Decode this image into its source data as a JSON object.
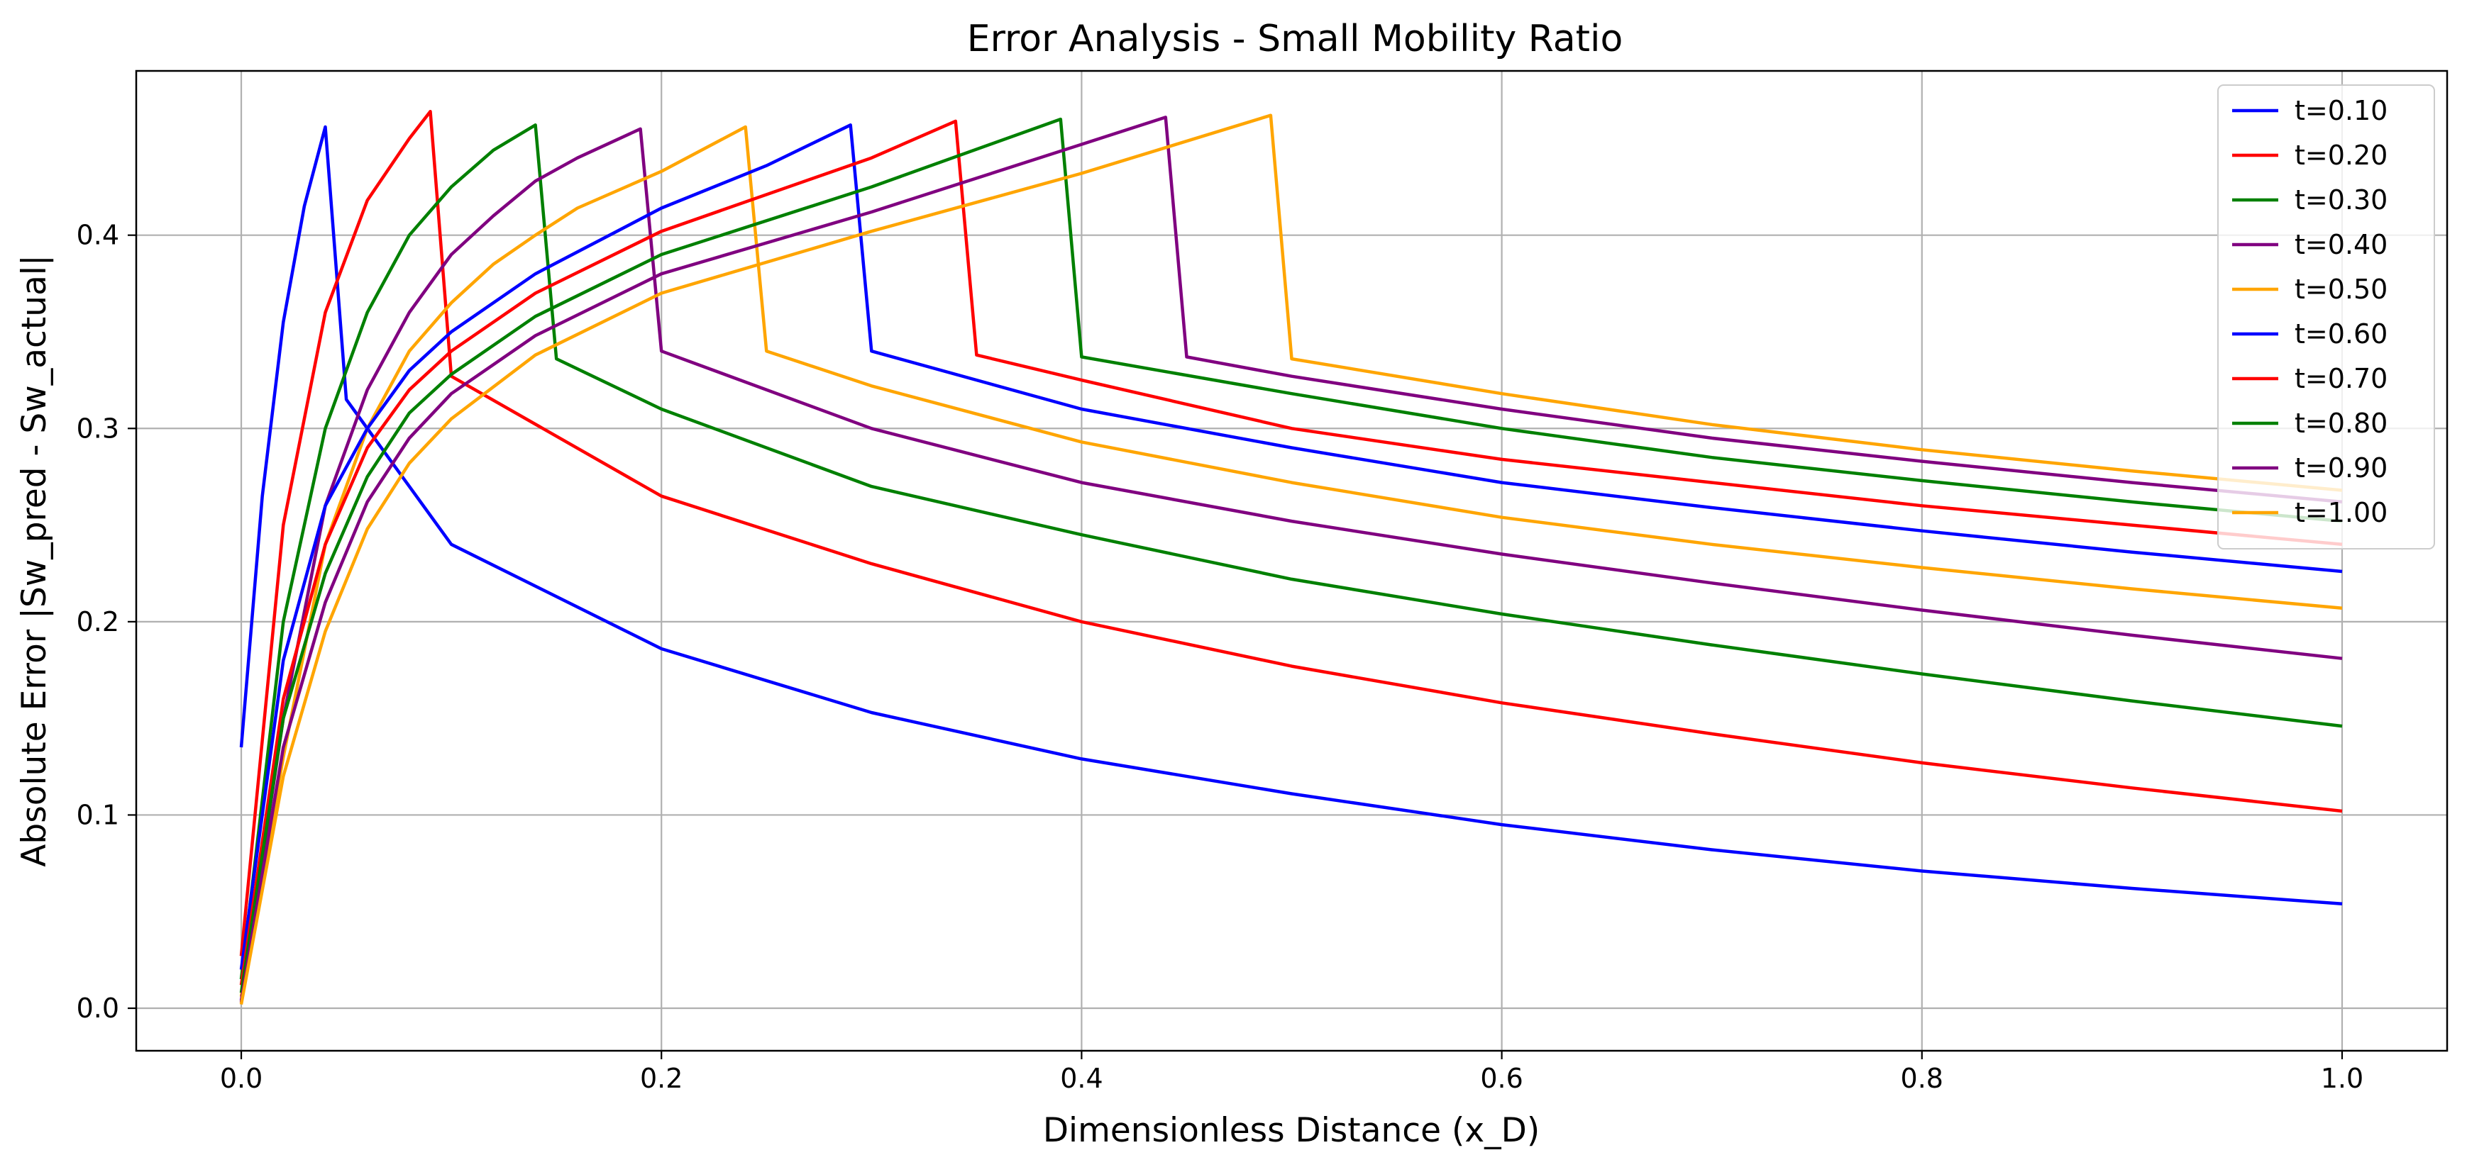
{
  "chart_data": {
    "type": "line",
    "title": "Error Analysis - Small Mobility Ratio",
    "xlabel": "Dimensionless Distance (x_D)",
    "ylabel": "Absolute Error |Sw_pred - Sw_actual|",
    "xlim": [
      -0.05,
      1.05
    ],
    "ylim": [
      -0.022,
      0.485
    ],
    "xticks": [
      0.0,
      0.2,
      0.4,
      0.6,
      0.8,
      1.0
    ],
    "xtick_labels": [
      "0.0",
      "0.2",
      "0.4",
      "0.6",
      "0.8",
      "1.0"
    ],
    "yticks": [
      0.0,
      0.1,
      0.2,
      0.3,
      0.4
    ],
    "ytick_labels": [
      "0.0",
      "0.1",
      "0.2",
      "0.3",
      "0.4"
    ],
    "grid": true,
    "legend_position": "top-right",
    "series": [
      {
        "name": "t=0.10",
        "color": "#0000ff",
        "points": [
          [
            0.0,
            0.135
          ],
          [
            0.01,
            0.265
          ],
          [
            0.02,
            0.355
          ],
          [
            0.03,
            0.415
          ],
          [
            0.04,
            0.456
          ],
          [
            0.05,
            0.315
          ],
          [
            0.1,
            0.24
          ],
          [
            0.2,
            0.186
          ],
          [
            0.3,
            0.153
          ],
          [
            0.4,
            0.129
          ],
          [
            0.5,
            0.111
          ],
          [
            0.6,
            0.095
          ],
          [
            0.7,
            0.082
          ],
          [
            0.8,
            0.071
          ],
          [
            0.9,
            0.062
          ],
          [
            1.0,
            0.054
          ]
        ]
      },
      {
        "name": "t=0.20",
        "color": "#ff0000",
        "points": [
          [
            0.0,
            0.027
          ],
          [
            0.02,
            0.25
          ],
          [
            0.04,
            0.36
          ],
          [
            0.06,
            0.418
          ],
          [
            0.08,
            0.45
          ],
          [
            0.09,
            0.464
          ],
          [
            0.1,
            0.327
          ],
          [
            0.2,
            0.265
          ],
          [
            0.3,
            0.23
          ],
          [
            0.4,
            0.2
          ],
          [
            0.5,
            0.177
          ],
          [
            0.6,
            0.158
          ],
          [
            0.7,
            0.142
          ],
          [
            0.8,
            0.127
          ],
          [
            0.9,
            0.114
          ],
          [
            1.0,
            0.102
          ]
        ]
      },
      {
        "name": "t=0.30",
        "color": "#008000",
        "points": [
          [
            0.0,
            0.015
          ],
          [
            0.02,
            0.2
          ],
          [
            0.04,
            0.3
          ],
          [
            0.06,
            0.36
          ],
          [
            0.08,
            0.4
          ],
          [
            0.1,
            0.425
          ],
          [
            0.12,
            0.444
          ],
          [
            0.14,
            0.457
          ],
          [
            0.15,
            0.336
          ],
          [
            0.2,
            0.31
          ],
          [
            0.3,
            0.27
          ],
          [
            0.4,
            0.245
          ],
          [
            0.5,
            0.222
          ],
          [
            0.6,
            0.204
          ],
          [
            0.7,
            0.188
          ],
          [
            0.8,
            0.173
          ],
          [
            0.9,
            0.159
          ],
          [
            1.0,
            0.146
          ]
        ]
      },
      {
        "name": "t=0.40",
        "color": "#800080",
        "points": [
          [
            0.0,
            0.003
          ],
          [
            0.02,
            0.15
          ],
          [
            0.04,
            0.26
          ],
          [
            0.06,
            0.32
          ],
          [
            0.08,
            0.36
          ],
          [
            0.1,
            0.39
          ],
          [
            0.12,
            0.41
          ],
          [
            0.14,
            0.428
          ],
          [
            0.16,
            0.44
          ],
          [
            0.19,
            0.455
          ],
          [
            0.2,
            0.34
          ],
          [
            0.3,
            0.3
          ],
          [
            0.4,
            0.272
          ],
          [
            0.5,
            0.252
          ],
          [
            0.6,
            0.235
          ],
          [
            0.7,
            0.22
          ],
          [
            0.8,
            0.206
          ],
          [
            0.9,
            0.193
          ],
          [
            1.0,
            0.181
          ]
        ]
      },
      {
        "name": "t=0.50",
        "color": "#ffa500",
        "points": [
          [
            0.0,
            0.006
          ],
          [
            0.02,
            0.13
          ],
          [
            0.04,
            0.24
          ],
          [
            0.06,
            0.3
          ],
          [
            0.08,
            0.34
          ],
          [
            0.1,
            0.365
          ],
          [
            0.12,
            0.385
          ],
          [
            0.14,
            0.4
          ],
          [
            0.16,
            0.414
          ],
          [
            0.2,
            0.433
          ],
          [
            0.24,
            0.456
          ],
          [
            0.25,
            0.34
          ],
          [
            0.3,
            0.322
          ],
          [
            0.4,
            0.293
          ],
          [
            0.5,
            0.272
          ],
          [
            0.6,
            0.254
          ],
          [
            0.7,
            0.24
          ],
          [
            0.8,
            0.228
          ],
          [
            0.9,
            0.217
          ],
          [
            1.0,
            0.207
          ]
        ]
      },
      {
        "name": "t=0.60",
        "color": "#0000ff",
        "points": [
          [
            0.0,
            0.02
          ],
          [
            0.02,
            0.18
          ],
          [
            0.04,
            0.26
          ],
          [
            0.06,
            0.3
          ],
          [
            0.08,
            0.33
          ],
          [
            0.1,
            0.35
          ],
          [
            0.14,
            0.38
          ],
          [
            0.2,
            0.414
          ],
          [
            0.25,
            0.436
          ],
          [
            0.29,
            0.457
          ],
          [
            0.3,
            0.34
          ],
          [
            0.4,
            0.31
          ],
          [
            0.5,
            0.29
          ],
          [
            0.6,
            0.272
          ],
          [
            0.7,
            0.259
          ],
          [
            0.8,
            0.247
          ],
          [
            0.9,
            0.236
          ],
          [
            1.0,
            0.226
          ]
        ]
      },
      {
        "name": "t=0.70",
        "color": "#ff0000",
        "points": [
          [
            0.0,
            0.012
          ],
          [
            0.02,
            0.16
          ],
          [
            0.04,
            0.24
          ],
          [
            0.06,
            0.29
          ],
          [
            0.08,
            0.32
          ],
          [
            0.1,
            0.34
          ],
          [
            0.14,
            0.37
          ],
          [
            0.2,
            0.402
          ],
          [
            0.3,
            0.44
          ],
          [
            0.34,
            0.459
          ],
          [
            0.35,
            0.338
          ],
          [
            0.4,
            0.325
          ],
          [
            0.5,
            0.3
          ],
          [
            0.6,
            0.284
          ],
          [
            0.7,
            0.272
          ],
          [
            0.8,
            0.26
          ],
          [
            0.9,
            0.25
          ],
          [
            1.0,
            0.24
          ]
        ]
      },
      {
        "name": "t=0.80",
        "color": "#008000",
        "points": [
          [
            0.0,
            0.008
          ],
          [
            0.02,
            0.15
          ],
          [
            0.04,
            0.225
          ],
          [
            0.06,
            0.275
          ],
          [
            0.08,
            0.308
          ],
          [
            0.1,
            0.328
          ],
          [
            0.14,
            0.358
          ],
          [
            0.2,
            0.39
          ],
          [
            0.3,
            0.425
          ],
          [
            0.39,
            0.46
          ],
          [
            0.4,
            0.337
          ],
          [
            0.5,
            0.318
          ],
          [
            0.6,
            0.3
          ],
          [
            0.7,
            0.285
          ],
          [
            0.8,
            0.273
          ],
          [
            0.9,
            0.262
          ],
          [
            1.0,
            0.252
          ]
        ]
      },
      {
        "name": "t=0.90",
        "color": "#800080",
        "points": [
          [
            0.0,
            0.004
          ],
          [
            0.02,
            0.135
          ],
          [
            0.04,
            0.21
          ],
          [
            0.06,
            0.262
          ],
          [
            0.08,
            0.295
          ],
          [
            0.1,
            0.318
          ],
          [
            0.14,
            0.348
          ],
          [
            0.2,
            0.38
          ],
          [
            0.3,
            0.412
          ],
          [
            0.4,
            0.447
          ],
          [
            0.44,
            0.461
          ],
          [
            0.45,
            0.337
          ],
          [
            0.5,
            0.327
          ],
          [
            0.6,
            0.31
          ],
          [
            0.7,
            0.295
          ],
          [
            0.8,
            0.283
          ],
          [
            0.9,
            0.272
          ],
          [
            1.0,
            0.262
          ]
        ]
      },
      {
        "name": "t=1.00",
        "color": "#ffa500",
        "points": [
          [
            0.0,
            0.002
          ],
          [
            0.02,
            0.12
          ],
          [
            0.04,
            0.195
          ],
          [
            0.06,
            0.248
          ],
          [
            0.08,
            0.282
          ],
          [
            0.1,
            0.305
          ],
          [
            0.14,
            0.338
          ],
          [
            0.2,
            0.37
          ],
          [
            0.3,
            0.402
          ],
          [
            0.4,
            0.432
          ],
          [
            0.49,
            0.462
          ],
          [
            0.5,
            0.336
          ],
          [
            0.6,
            0.318
          ],
          [
            0.7,
            0.302
          ],
          [
            0.8,
            0.289
          ],
          [
            0.9,
            0.278
          ],
          [
            1.0,
            0.268
          ]
        ]
      }
    ]
  }
}
